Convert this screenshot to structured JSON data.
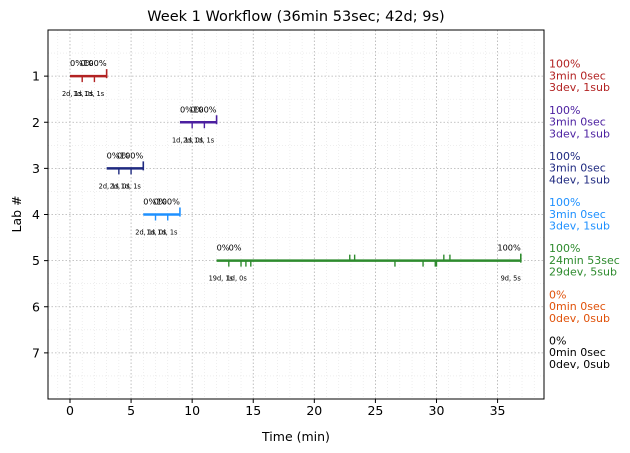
{
  "chart_data": {
    "type": "gantt-timeline",
    "title": "Week 1 Workflow (36min 53sec; 42d; 9s)",
    "xlabel": "Time (min)",
    "ylabel": "Lab #",
    "xlim": [
      -1.8,
      38.8
    ],
    "ylim": [
      8,
      0
    ],
    "xticks": [
      0,
      5,
      10,
      15,
      20,
      25,
      30,
      35
    ],
    "yticks": [
      1,
      2,
      3,
      4,
      5,
      6,
      7
    ],
    "grid": true,
    "labs": [
      {
        "lab": 1,
        "color": "#b22222",
        "start": 0,
        "end": 3,
        "start_label": "0%",
        "end_label": "100%",
        "mid_labels": [
          "0%"
        ],
        "marks": [
          1,
          2
        ],
        "bottom_labels": [
          "2d, 1s",
          "1d, 0s",
          "1d, 1s"
        ],
        "summary": [
          "100%",
          "3min 0sec",
          "3dev, 1sub"
        ]
      },
      {
        "lab": 2,
        "color": "#4b1fa0",
        "start": 9,
        "end": 12,
        "start_label": "0%",
        "end_label": "100%",
        "mid_labels": [
          "0%"
        ],
        "marks": [
          10,
          11
        ],
        "bottom_labels": [
          "1d, 1s",
          "2d, 0s",
          "1d, 1s"
        ],
        "summary": [
          "100%",
          "3min 0sec",
          "3dev, 1sub"
        ]
      },
      {
        "lab": 3,
        "color": "#1f2a80",
        "start": 3,
        "end": 6,
        "start_label": "0%",
        "end_label": "100%",
        "mid_labels": [
          "0%"
        ],
        "marks": [
          4,
          5
        ],
        "bottom_labels": [
          "2d, 1s",
          "2d, 0s",
          "1d, 1s"
        ],
        "summary": [
          "100%",
          "3min 0sec",
          "4dev, 1sub"
        ]
      },
      {
        "lab": 4,
        "color": "#1e90ff",
        "start": 6,
        "end": 9,
        "start_label": "0%",
        "end_label": "100%",
        "mid_labels": [
          "0%"
        ],
        "marks": [
          7,
          8
        ],
        "bottom_labels": [
          "2d, 1s",
          "1d, 0s",
          "1d, 1s"
        ],
        "summary": [
          "100%",
          "3min 0sec",
          "3dev, 1sub"
        ]
      },
      {
        "lab": 5,
        "color": "#2e8b2e",
        "start": 12,
        "end": 36.9,
        "start_label": "0%",
        "end_label": "100%",
        "mid_labels": [
          "0%"
        ],
        "marks": [
          13,
          14,
          14.4,
          14.8,
          22.9,
          23.3,
          26.6,
          28.9,
          29.9,
          30.0,
          30.6,
          31.1
        ],
        "bottom_labels": [
          "19d, 1s",
          "1d, 0s"
        ],
        "end_bottom_label": "9d, 5s",
        "summary": [
          "100%",
          "24min 53sec",
          "29dev, 5sub"
        ]
      },
      {
        "lab": 6,
        "color": "#e0520a",
        "summary": [
          "0%",
          "0min 0sec",
          "0dev, 0sub"
        ]
      },
      {
        "lab": 7,
        "color": "#000000",
        "summary": [
          "0%",
          "0min 0sec",
          "0dev, 0sub"
        ]
      }
    ]
  }
}
